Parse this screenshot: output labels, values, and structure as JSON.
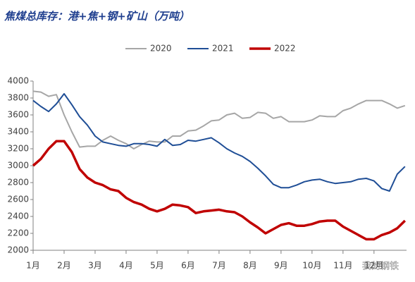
{
  "chart_data": {
    "type": "line",
    "title": "焦煤总库存：港+焦+钢+矿山（万吨）",
    "watermark": "我的钢铁",
    "x": [
      1,
      1.25,
      1.5,
      1.75,
      2,
      2.25,
      2.5,
      2.75,
      3,
      3.25,
      3.5,
      3.75,
      4,
      4.25,
      4.5,
      4.75,
      5,
      5.25,
      5.5,
      5.75,
      6,
      6.25,
      6.5,
      6.75,
      7,
      7.25,
      7.5,
      7.75,
      8,
      8.25,
      8.5,
      8.75,
      9,
      9.25,
      9.5,
      9.75,
      10,
      10.25,
      10.5,
      10.75,
      11,
      11.25,
      11.5,
      11.75,
      12,
      12.25,
      12.5,
      12.75,
      13
    ],
    "series": [
      {
        "name": "2020",
        "color": "#a6a6a6",
        "width": 2,
        "values": [
          3880,
          3870,
          3820,
          3840,
          3600,
          3400,
          3220,
          3230,
          3230,
          3300,
          3350,
          3300,
          3260,
          3200,
          3250,
          3290,
          3280,
          3280,
          3350,
          3350,
          3410,
          3420,
          3470,
          3530,
          3540,
          3600,
          3620,
          3560,
          3570,
          3630,
          3620,
          3560,
          3580,
          3520,
          3520,
          3520,
          3540,
          3590,
          3580,
          3580,
          3650,
          3680,
          3730,
          3770,
          3770,
          3770,
          3730,
          3680,
          3710
        ]
      },
      {
        "name": "2021",
        "color": "#1f4e96",
        "width": 2,
        "values": [
          3770,
          3700,
          3640,
          3730,
          3850,
          3720,
          3580,
          3480,
          3350,
          3280,
          3260,
          3240,
          3230,
          3260,
          3260,
          3250,
          3230,
          3310,
          3240,
          3250,
          3300,
          3290,
          3310,
          3330,
          3270,
          3200,
          3150,
          3110,
          3050,
          2970,
          2880,
          2780,
          2740,
          2740,
          2770,
          2810,
          2830,
          2840,
          2810,
          2790,
          2800,
          2810,
          2840,
          2850,
          2820,
          2730,
          2700,
          2900,
          2990
        ]
      },
      {
        "name": "2022",
        "color": "#c00000",
        "width": 3.5,
        "values": [
          3000,
          3080,
          3200,
          3290,
          3290,
          3160,
          2960,
          2860,
          2800,
          2770,
          2720,
          2700,
          2620,
          2570,
          2540,
          2490,
          2460,
          2490,
          2540,
          2530,
          2510,
          2440,
          2460,
          2470,
          2480,
          2460,
          2450,
          2400,
          2330,
          2270,
          2200,
          2250,
          2300,
          2320,
          2290,
          2290,
          2310,
          2340,
          2350,
          2350,
          2280,
          2230,
          2180,
          2130,
          2130,
          2180,
          2210,
          2260,
          2350
        ]
      }
    ],
    "xlim": [
      1,
      13.05
    ],
    "xticks": [
      {
        "value": 1,
        "label": "1月"
      },
      {
        "value": 2,
        "label": "2月"
      },
      {
        "value": 3,
        "label": "3月"
      },
      {
        "value": 4,
        "label": "4月"
      },
      {
        "value": 5,
        "label": "5月"
      },
      {
        "value": 6,
        "label": "6月"
      },
      {
        "value": 7,
        "label": "7月"
      },
      {
        "value": 8,
        "label": "8月"
      },
      {
        "value": 9,
        "label": "9月"
      },
      {
        "value": 10,
        "label": "10月"
      },
      {
        "value": 11,
        "label": "11月"
      },
      {
        "value": 12,
        "label": "12月"
      }
    ],
    "ylim": [
      2000,
      4000
    ],
    "yticks": [
      2000,
      2200,
      2400,
      2600,
      2800,
      3000,
      3200,
      3400,
      3600,
      3800,
      4000
    ],
    "grid": false
  }
}
